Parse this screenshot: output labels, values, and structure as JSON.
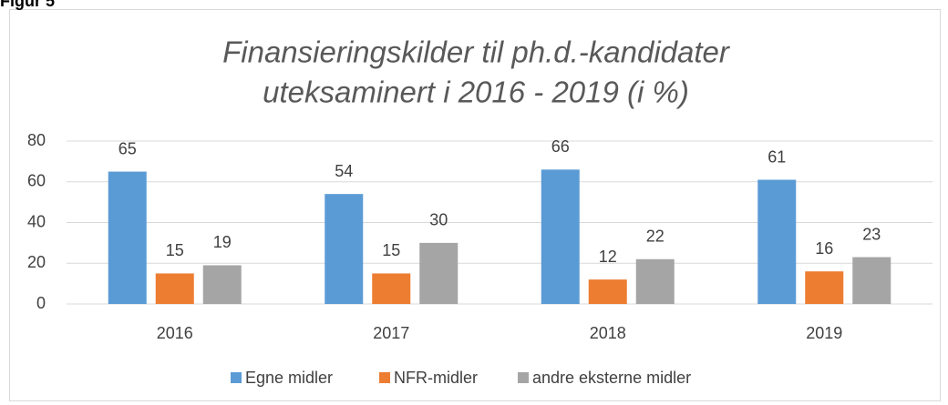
{
  "figure_label": "Figur 5",
  "chart_data": {
    "type": "bar",
    "title": [
      "Finansieringskilder til ph.d.-kandidater",
      "uteksaminert i 2016 - 2019 (i %)"
    ],
    "categories": [
      "2016",
      "2017",
      "2018",
      "2019"
    ],
    "series": [
      {
        "name": "Egne midler",
        "color": "#5b9bd5",
        "values": [
          65,
          54,
          66,
          61
        ]
      },
      {
        "name": "NFR-midler",
        "color": "#ed7d31",
        "values": [
          15,
          15,
          12,
          16
        ]
      },
      {
        "name": "andre eksterne midler",
        "color": "#a5a5a5",
        "values": [
          19,
          30,
          22,
          23
        ]
      }
    ],
    "ylim": [
      0,
      80
    ],
    "yticks": [
      0,
      20,
      40,
      60,
      80
    ],
    "grid": true,
    "legend": "bottom"
  }
}
